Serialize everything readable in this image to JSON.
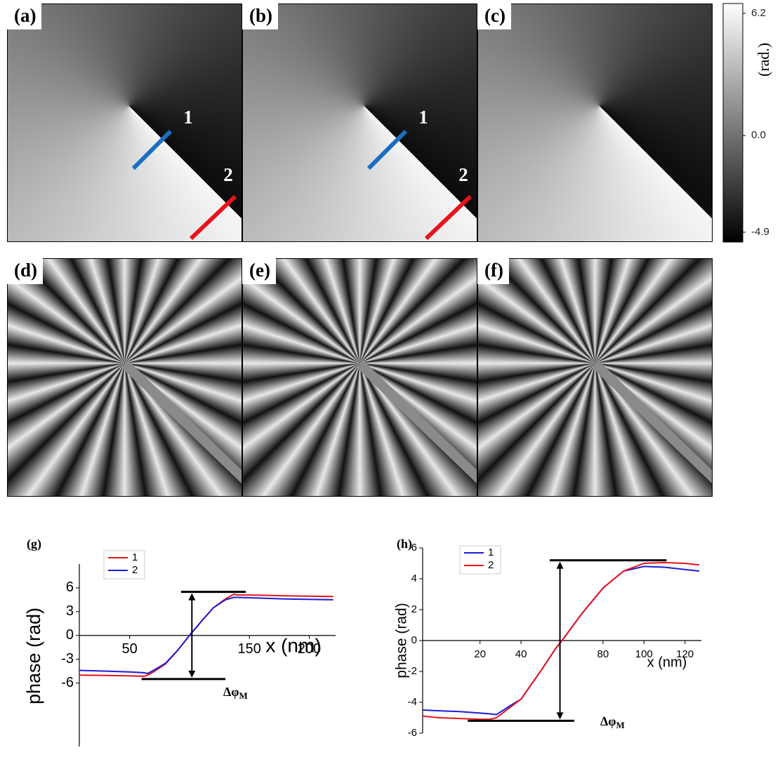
{
  "panels": [
    {
      "label": "(a)",
      "markers": [
        "1",
        "2"
      ]
    },
    {
      "label": "(b)",
      "markers": [
        "1",
        "2"
      ]
    },
    {
      "label": "(c)"
    },
    {
      "label": "(d)"
    },
    {
      "label": "(e)"
    },
    {
      "label": "(f)"
    }
  ],
  "colorbar": {
    "label": "(rad.)",
    "lim": [
      -5.4,
      6.7
    ],
    "ticks": [
      6.2,
      {
        "value": 0,
        "label": "0.0"
      },
      -4.9
    ]
  },
  "chart_data": [
    {
      "type": "line",
      "label": "(g)",
      "x_label": "x (nm)",
      "y_label": "phase (rad)",
      "xlim": [
        8,
        222
      ],
      "ylim": [
        -14,
        9
      ],
      "xticks": [
        50,
        150,
        200
      ],
      "yticks": [
        6,
        3,
        0,
        -3,
        -6
      ],
      "x": [
        8,
        30,
        50,
        62,
        65,
        70,
        80,
        90,
        100,
        110,
        120,
        130,
        137,
        140,
        150,
        180,
        220
      ],
      "series": [
        {
          "name": "1",
          "color": "#e8131b",
          "values": [
            -5,
            -5.05,
            -5.1,
            -5.15,
            -5.0,
            -4.6,
            -3.6,
            -1.9,
            0,
            1.8,
            3.5,
            4.6,
            5.2,
            5.1,
            5.1,
            5.0,
            4.9
          ]
        },
        {
          "name": "2",
          "color": "#1c1cd8",
          "values": [
            -4.4,
            -4.5,
            -4.6,
            -4.7,
            -4.8,
            -4.4,
            -3.5,
            -1.9,
            0,
            1.8,
            3.5,
            4.5,
            4.8,
            4.8,
            4.75,
            4.6,
            4.5
          ]
        }
      ],
      "annotation": {
        "text": "Δφ",
        "sub": "M"
      },
      "bracket": {
        "x": 102,
        "top": 5.5,
        "bottom": -5.5,
        "top_span": [
          93,
          147
        ],
        "bottom_span": [
          60,
          130
        ]
      }
    },
    {
      "type": "line",
      "label": "(h)",
      "x_label": "x (nm)",
      "y_label": "phase (rad)",
      "xlim": [
        -8,
        128
      ],
      "ylim": [
        -6,
        6
      ],
      "xticks": [
        20,
        40,
        80,
        100,
        120
      ],
      "yticks": [
        6,
        4,
        2,
        0,
        -2,
        -4,
        -6
      ],
      "x": [
        -8,
        0,
        10,
        20,
        25,
        28,
        35,
        40,
        50,
        57,
        60,
        70,
        80,
        90,
        100,
        110,
        120,
        127
      ],
      "series": [
        {
          "name": "1",
          "color": "#1c1cd8",
          "values": [
            -4.5,
            -4.55,
            -4.6,
            -4.7,
            -4.75,
            -4.8,
            -4.2,
            -3.8,
            -1.9,
            -0.5,
            0,
            1.8,
            3.4,
            4.5,
            4.8,
            4.75,
            4.6,
            4.5
          ]
        },
        {
          "name": "2",
          "color": "#e8131b",
          "values": [
            -4.9,
            -5.0,
            -5.05,
            -5.1,
            -5.1,
            -5.0,
            -4.3,
            -3.8,
            -1.9,
            -0.5,
            0,
            1.8,
            3.4,
            4.5,
            5.0,
            5.05,
            5.0,
            4.9
          ]
        }
      ],
      "annotation": {
        "text": "Δφ",
        "sub": "M"
      },
      "bracket": {
        "x": 59,
        "top": 5.2,
        "bottom": -5.2,
        "top_span": [
          54,
          111
        ],
        "bottom_span": [
          14,
          66
        ]
      }
    }
  ]
}
